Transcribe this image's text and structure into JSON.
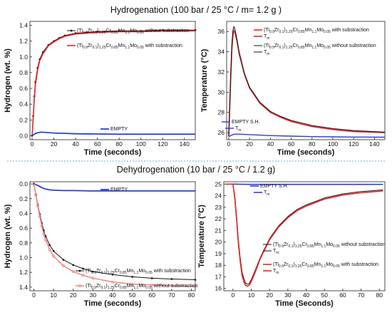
{
  "titles": {
    "top": "Hydrogenation (100 bar / 25 °C / m= 1.2 g )",
    "bottom": "Dehydrogenation (10 bar / 25 °C / 1.2 g)"
  },
  "colors": {
    "black": "#111111",
    "red": "#e8262a",
    "pink": "#f08a8a",
    "blue": "#2a3fdc",
    "divider": "#7aa7d6"
  },
  "chart_data": [
    {
      "id": "p1",
      "type": "line",
      "xlabel": "Time (seconds)",
      "ylabel": "Hydrogen (wt. %)",
      "xlim": [
        -2,
        150
      ],
      "ylim": [
        -0.05,
        1.45
      ],
      "xticks": [
        0,
        20,
        40,
        60,
        80,
        100,
        120,
        140
      ],
      "yticks": [
        0.0,
        0.2,
        0.4,
        0.6,
        0.8,
        1.0,
        1.2,
        1.4
      ],
      "ytick_labels": [
        "0.0",
        "0.2",
        "0.4",
        "0.6",
        "0.8",
        "1.0",
        "1.2",
        "1.4"
      ],
      "series": [
        {
          "name": "(Ti0.9Zr0.1)1.25Cr0.85Mn1.1Mo0.05 without substraction",
          "color": "#111111",
          "width": 1.0,
          "marker": "dot",
          "x": [
            0,
            1,
            2,
            3,
            5,
            7,
            10,
            15,
            20,
            25,
            30,
            40,
            50,
            60,
            80,
            100,
            120,
            150
          ],
          "y": [
            0,
            0.25,
            0.5,
            0.68,
            0.86,
            0.97,
            1.06,
            1.15,
            1.2,
            1.24,
            1.27,
            1.3,
            1.31,
            1.32,
            1.33,
            1.33,
            1.34,
            1.34
          ]
        },
        {
          "name": "(Ti0.9Zr0.1)1.25Cr0.85Mn1.1Mo0.05 with substraction",
          "color": "#e8262a",
          "width": 1.6,
          "marker": "",
          "x": [
            0,
            1,
            2,
            3,
            5,
            7,
            10,
            15,
            20,
            25,
            30,
            40,
            50,
            60,
            80,
            100,
            120,
            150
          ],
          "y": [
            0,
            0.22,
            0.46,
            0.64,
            0.83,
            0.95,
            1.04,
            1.14,
            1.19,
            1.23,
            1.26,
            1.29,
            1.3,
            1.31,
            1.32,
            1.32,
            1.33,
            1.33
          ]
        },
        {
          "name": "EMPTY",
          "color": "#2a3fdc",
          "width": 1.8,
          "marker": "",
          "x": [
            0,
            2,
            4,
            6,
            8,
            10,
            14,
            20,
            30,
            40,
            60,
            80,
            100,
            120,
            150
          ],
          "y": [
            0,
            0.02,
            0.035,
            0.04,
            0.045,
            0.045,
            0.04,
            0.035,
            0.03,
            0.025,
            0.022,
            0.02,
            0.02,
            0.02,
            0.02
          ]
        }
      ],
      "legend": [
        {
          "series": 0,
          "pre": "(Ti",
          "s1": "0.9",
          "m1": "Zr",
          "s2": "0.1",
          "m2": ")",
          "s3": "1.25",
          "m3": "Cr",
          "s4": "0.85",
          "m4": "Mn",
          "s5": "1.1",
          "m5": "Mo",
          "s6": "0.05",
          "post": " without substraction"
        },
        {
          "series": 1,
          "pre": "(Ti",
          "s1": "0.9",
          "m1": "Zr",
          "s2": "0.1",
          "m2": ")",
          "s3": "1.25",
          "m3": "Cr",
          "s4": "0.85",
          "m4": "Mn",
          "s5": "1.1",
          "m5": "Mo",
          "s6": "0.05",
          "post": " with substraction"
        },
        {
          "series": 2,
          "label": "EMPTY"
        }
      ]
    },
    {
      "id": "p2",
      "type": "line",
      "xlabel": "Time (seconds)",
      "ylabel": "Temperature (°C)",
      "xlim": [
        -2,
        150
      ],
      "ylim": [
        25.3,
        37.0
      ],
      "xticks": [
        0,
        20,
        40,
        60,
        80,
        100,
        120,
        140
      ],
      "yticks": [
        26,
        28,
        30,
        32,
        34,
        36
      ],
      "ytick_labels": [
        "26",
        "28",
        "30",
        "32",
        "34",
        "36"
      ],
      "series": [
        {
          "name": "(Ti0.9Zr0.1)1.25Cr0.85Mn1.1Mo0.05 with substraction Tm",
          "color": "#e8262a",
          "width": 1.6,
          "marker": "",
          "x": [
            0,
            2,
            3,
            4,
            5,
            6,
            8,
            10,
            15,
            20,
            30,
            40,
            50,
            60,
            80,
            100,
            120,
            150
          ],
          "y": [
            25.6,
            31.5,
            34.2,
            35.6,
            36.1,
            35.9,
            35.0,
            33.8,
            31.8,
            30.4,
            28.9,
            28.0,
            27.5,
            27.1,
            26.6,
            26.3,
            26.1,
            26.0
          ]
        },
        {
          "name": "(Ti0.9Zr0.1)1.25Cr0.85Mn1.1Mo0.05 without substraction Tm",
          "color": "#111111",
          "width": 1.0,
          "marker": "",
          "x": [
            0,
            2,
            3,
            4,
            5,
            6,
            8,
            10,
            15,
            20,
            30,
            40,
            50,
            60,
            80,
            100,
            120,
            150
          ],
          "y": [
            25.6,
            32.0,
            34.8,
            36.1,
            36.5,
            36.2,
            35.2,
            34.0,
            31.9,
            30.5,
            29.0,
            28.1,
            27.6,
            27.2,
            26.7,
            26.4,
            26.2,
            26.05
          ]
        },
        {
          "name": "EMPTY S.H. Tm",
          "color": "#2a3fdc",
          "width": 1.4,
          "marker": "",
          "x": [
            0,
            2,
            4,
            6,
            8,
            10,
            15,
            20,
            30,
            40,
            60,
            80,
            100,
            120,
            150
          ],
          "y": [
            25.6,
            25.7,
            25.8,
            25.85,
            25.85,
            25.85,
            25.82,
            25.8,
            25.75,
            25.7,
            25.65,
            25.6,
            25.58,
            25.56,
            25.55
          ]
        }
      ],
      "legend": [
        {
          "series": 0,
          "pre": "(Ti",
          "s1": "0.9",
          "m1": "Zr",
          "s2": "0.1",
          "m2": ")",
          "s3": "1.25",
          "m3": "Cr",
          "s4": "0.85",
          "m4": "Mn",
          "s5": "1.1",
          "m5": "Mo",
          "s6": "0.05",
          "post": " with substraction",
          "tm": "T",
          "tmsub": "m"
        },
        {
          "series": 1,
          "pre": "(Ti",
          "s1": "0.9",
          "m1": "Zr",
          "s2": "0.1",
          "m2": ")",
          "s3": "1.25",
          "m3": "Cr",
          "s4": "0.85",
          "m4": "Mn",
          "s5": "1.1",
          "m5": "Mo",
          "s6": "0.05",
          "post": " without substraction",
          "tm": "T",
          "tmsub": "m"
        },
        {
          "series": 2,
          "label": "EMPTY S.H.",
          "tm": "T",
          "tmsub": "m"
        }
      ]
    },
    {
      "id": "p3",
      "type": "line",
      "xlabel": "Time (seconds)",
      "ylabel": "Hydrogen (wt. %)",
      "inverted_y": true,
      "xlim": [
        -2,
        82
      ],
      "ylim": [
        -0.03,
        1.45
      ],
      "xticks": [
        0,
        10,
        20,
        30,
        40,
        50,
        60,
        70,
        80
      ],
      "yticks": [
        0.0,
        0.2,
        0.4,
        0.6,
        0.8,
        1.0,
        1.2,
        1.4
      ],
      "ytick_labels": [
        "0.0",
        "0.2",
        "0.4",
        "0.6",
        "0.8",
        "1.0",
        "1.2",
        "1.4"
      ],
      "series": [
        {
          "name": "EMPTY",
          "color": "#2a3fdc",
          "width": 1.8,
          "marker": "",
          "x": [
            0,
            2,
            4,
            6,
            8,
            10,
            15,
            20,
            30,
            40,
            50,
            60,
            70,
            82
          ],
          "y": [
            0.0,
            0.02,
            0.05,
            0.07,
            0.08,
            0.085,
            0.09,
            0.09,
            0.095,
            0.095,
            0.095,
            0.095,
            0.095,
            0.095
          ]
        },
        {
          "name": "(Ti0.9Zr0.1)1.25Cr0.85Mn1.1Mo0.05 with substraction",
          "color": "#111111",
          "width": 1.0,
          "marker": "dot",
          "x": [
            0,
            1,
            2,
            3,
            4,
            5,
            6,
            8,
            10,
            15,
            20,
            25,
            30,
            40,
            50,
            60,
            70,
            82
          ],
          "y": [
            0,
            0.14,
            0.28,
            0.41,
            0.53,
            0.63,
            0.71,
            0.83,
            0.91,
            1.03,
            1.1,
            1.15,
            1.19,
            1.23,
            1.26,
            1.28,
            1.29,
            1.3
          ]
        },
        {
          "name": "(Ti0.9Zr0.1)1.25Cr0.85Mn1.1Mo0.05 without substraction",
          "color": "#f08a8a",
          "width": 1.6,
          "marker": "ring",
          "x": [
            0,
            1,
            2,
            3,
            4,
            5,
            6,
            8,
            10,
            15,
            20,
            25,
            30,
            40,
            50,
            60,
            70,
            82
          ],
          "y": [
            0,
            0.15,
            0.3,
            0.44,
            0.57,
            0.68,
            0.76,
            0.89,
            0.98,
            1.11,
            1.19,
            1.24,
            1.28,
            1.33,
            1.36,
            1.37,
            1.38,
            1.39
          ]
        }
      ],
      "legend": [
        {
          "series": 0,
          "label": "EMPTY"
        },
        {
          "series": 1,
          "pre": "(Ti",
          "s1": "0.9",
          "m1": "Zr",
          "s2": "0.1",
          "m2": ")",
          "s3": "1.25",
          "m3": "Cr",
          "s4": "0.85",
          "m4": "Mn",
          "s5": "1.1",
          "m5": "Mo",
          "s6": "0.05",
          "post": " with substraction"
        },
        {
          "series": 2,
          "pre": "(Ti",
          "s1": "0.9",
          "m1": "Zr",
          "s2": "0.1",
          "m2": ")",
          "s3": "1.25",
          "m3": "Cr",
          "s4": "0.85",
          "m4": "Mn",
          "s5": "1.1",
          "m5": "Mo",
          "s6": "0.05",
          "post": " without substraction"
        }
      ]
    },
    {
      "id": "p4",
      "type": "line",
      "xlabel": "Time (Seconds)",
      "ylabel": "Temperature (°C)",
      "xlim": [
        -5,
        83
      ],
      "ylim": [
        15.8,
        25.2
      ],
      "xticks": [
        0,
        10,
        20,
        30,
        40,
        50,
        60,
        70,
        80
      ],
      "yticks": [
        16,
        17,
        18,
        19,
        20,
        21,
        22,
        23,
        24,
        25
      ],
      "ytick_labels": [
        "16",
        "17",
        "18",
        "19",
        "20",
        "21",
        "22",
        "23",
        "24",
        "25"
      ],
      "series": [
        {
          "name": "EMPTY S.H. Tm",
          "color": "#2a3fdc",
          "width": 1.6,
          "marker": "",
          "x": [
            -4,
            0,
            5,
            10,
            20,
            30,
            40,
            50,
            60,
            70,
            82
          ],
          "y": [
            25.0,
            25.0,
            24.98,
            24.97,
            24.97,
            24.97,
            24.97,
            24.97,
            24.97,
            24.97,
            24.97
          ]
        },
        {
          "name": "(Ti0.9Zr0.1)1.25Cr0.85Mn1.1Mo0.05 without substraction Tm",
          "color": "#111111",
          "width": 1.0,
          "marker": "",
          "x": [
            -4,
            0,
            1,
            2,
            3,
            4,
            5,
            6,
            7,
            8,
            9,
            10,
            12,
            15,
            20,
            25,
            30,
            35,
            40,
            50,
            60,
            70,
            82
          ],
          "y": [
            25.0,
            25.0,
            24.0,
            22.2,
            20.2,
            18.6,
            17.4,
            16.8,
            16.45,
            16.35,
            16.45,
            16.75,
            17.5,
            18.7,
            20.3,
            21.4,
            22.2,
            22.8,
            23.2,
            23.8,
            24.15,
            24.35,
            24.5
          ]
        },
        {
          "name": "(Ti0.9Zr0.1)1.25Cr0.85Mn1.1Mo0.05 with substraction Tm",
          "color": "#e8262a",
          "width": 1.6,
          "marker": "",
          "x": [
            -4,
            0,
            1,
            2,
            3,
            4,
            5,
            6,
            7,
            8,
            9,
            10,
            12,
            15,
            20,
            25,
            30,
            35,
            40,
            50,
            60,
            70,
            82
          ],
          "y": [
            25.0,
            25.0,
            23.8,
            21.9,
            19.9,
            18.3,
            17.1,
            16.55,
            16.25,
            16.2,
            16.3,
            16.6,
            17.35,
            18.6,
            20.2,
            21.3,
            22.1,
            22.7,
            23.1,
            23.7,
            24.05,
            24.25,
            24.4
          ]
        }
      ],
      "legend": [
        {
          "series": 0,
          "label": "EMPTY S.H.",
          "tm": "T",
          "tmsub": "m"
        },
        {
          "series": 1,
          "pre": "(Ti",
          "s1": "0.9",
          "m1": "Zr",
          "s2": "0.1",
          "m2": ")",
          "s3": "1.25",
          "m3": "Cr",
          "s4": "0.85",
          "m4": "Mn",
          "s5": "1.1",
          "m5": "Mo",
          "s6": "0.05",
          "post": " without substraction",
          "tm": "T",
          "tmsub": "m"
        },
        {
          "series": 2,
          "pre": "(Ti",
          "s1": "0.9",
          "m1": "Zr",
          "s2": "0.1",
          "m2": ")",
          "s3": "1.25",
          "m3": "Cr",
          "s4": "0.85",
          "m4": "Mn",
          "s5": "1.1",
          "m5": "Mo",
          "s6": "0.05",
          "post": " with substraction",
          "tm": "T",
          "tmsub": "m"
        }
      ]
    }
  ]
}
